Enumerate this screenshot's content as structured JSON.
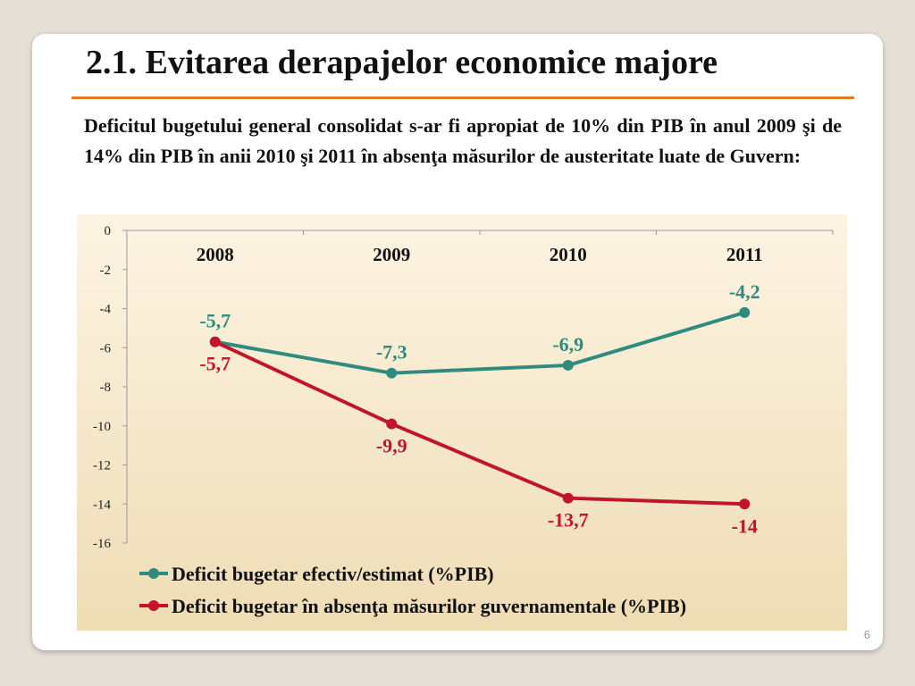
{
  "slide": {
    "title": "2.1. Evitarea derapajelor economice majore",
    "paragraph": "Deficitul bugetului general consolidat s-ar fi apropiat de 10% din PIB în anul 2009 şi de 14% din PIB în anii 2010 şi 2011 în absenţa măsurilor de austeritate luate de Guvern:",
    "page_number": "6"
  },
  "chart_data": {
    "type": "line",
    "categories": [
      "2008",
      "2009",
      "2010",
      "2011"
    ],
    "ylim": [
      -16,
      0
    ],
    "yticks": [
      0,
      -2,
      -4,
      -6,
      -8,
      -10,
      -12,
      -14,
      -16
    ],
    "grid": false,
    "legend_position": "bottom",
    "series": [
      {
        "name": "Deficit bugetar efectiv/estimat (%PIB)",
        "values": [
          -5.7,
          -7.3,
          -6.9,
          -4.2
        ],
        "labels": [
          "-5,7",
          "-7,3",
          "-6,9",
          "-4,2"
        ],
        "color": "#2e8b7e"
      },
      {
        "name": "Deficit bugetar în absenţa măsurilor guvernamentale (%PIB)",
        "values": [
          -5.7,
          -9.9,
          -13.7,
          -14
        ],
        "labels": [
          "-5,7",
          "-9,9",
          "-13,7",
          "-14"
        ],
        "color": "#c0152a"
      }
    ],
    "background_top": "#fdf4e3",
    "background_bottom": "#eedcb4"
  }
}
